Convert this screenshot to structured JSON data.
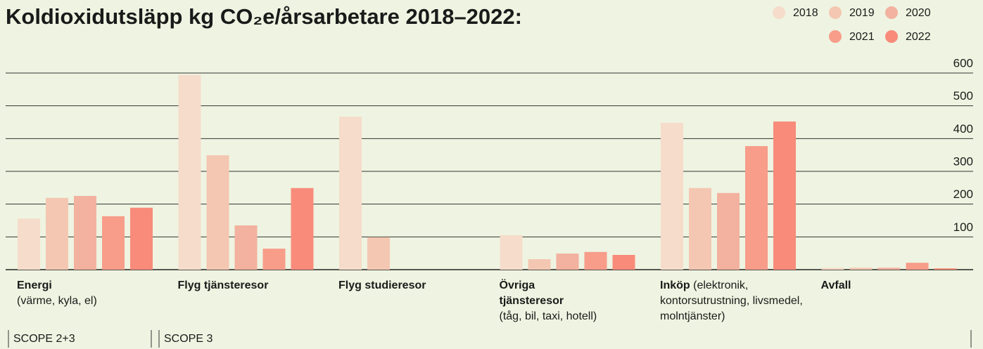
{
  "chart_data": {
    "type": "bar",
    "title": "Koldioxidutsläpp kg CO₂e/årsarbetare 2018–2022:",
    "categories": [
      "Energi",
      "Flyg tjänsteresor",
      "Flyg studieresor",
      "Övriga tjänsteresor",
      "Inköp",
      "Avfall"
    ],
    "category_notes": [
      "(värme, kyla, el)",
      null,
      null,
      "(tåg, bil, taxi, hotell)",
      "(elektronik, kontorsutrustning, livsmedel, molntjänster)",
      null
    ],
    "series": [
      {
        "name": "2018",
        "color": "#f6dcca",
        "values": [
          156,
          594,
          467,
          105,
          448,
          6
        ]
      },
      {
        "name": "2019",
        "color": "#f4c7b2",
        "values": [
          219,
          349,
          99,
          32,
          249,
          6
        ]
      },
      {
        "name": "2020",
        "color": "#f3b19f",
        "values": [
          225,
          135,
          0,
          49,
          234,
          6
        ]
      },
      {
        "name": "2021",
        "color": "#f79d8a",
        "values": [
          163,
          64,
          0,
          54,
          377,
          21
        ]
      },
      {
        "name": "2022",
        "color": "#f98b7a",
        "values": [
          189,
          249,
          0,
          45,
          452,
          4
        ]
      }
    ],
    "ylim": [
      0,
      600
    ],
    "yticks": [
      100,
      200,
      300,
      400,
      500,
      600
    ],
    "grid": true,
    "legend": "top-right",
    "scopes": [
      "SCOPE 2+3",
      "SCOPE 3"
    ]
  }
}
